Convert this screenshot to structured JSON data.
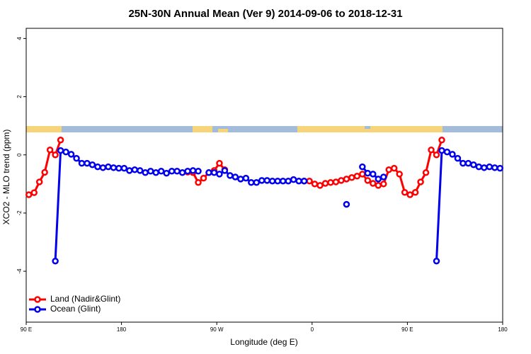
{
  "chart_data": {
    "type": "line",
    "title": "25N-30N Annual Mean (Ver 9)   2014-09-06 to 2018-12-31",
    "x_label": "Longitude (deg E)",
    "y_label": "XCO2 - MLO trend (ppm)",
    "x": [
      92.5,
      97.5,
      102.5,
      107.5,
      112.5,
      117.5,
      122.5,
      127.5,
      132.5,
      137.5,
      142.5,
      147.5,
      152.5,
      157.5,
      162.5,
      167.5,
      172.5,
      177.5,
      182.5,
      187.5,
      192.5,
      197.5,
      202.5,
      207.5,
      212.5,
      217.5,
      222.5,
      227.5,
      232.5,
      237.5,
      242.5,
      247.5,
      252.5,
      257.5,
      262.5,
      267.5,
      272.5,
      277.5,
      282.5,
      287.5,
      292.5,
      297.5,
      302.5,
      307.5,
      312.5,
      317.5,
      322.5,
      327.5,
      332.5,
      337.5,
      342.5,
      347.5,
      352.5,
      357.5,
      362.5,
      367.5,
      372.5,
      377.5,
      382.5,
      387.5,
      392.5,
      397.5,
      402.5,
      407.5,
      412.5,
      417.5,
      422.5,
      427.5,
      432.5,
      437.5,
      442.5,
      447.5,
      452.5,
      457.5,
      462.5,
      467.5,
      472.5,
      477.5,
      482.5,
      487.5,
      492.5,
      497.5,
      502.5,
      507.5,
      512.5,
      517.5,
      522.5,
      527.5,
      532.5,
      537.5
    ],
    "series": [
      {
        "name": "Land (Nadir&Glint)",
        "color": "#ff0000",
        "values": [
          -1.37,
          -1.3,
          -0.93,
          -0.6,
          0.17,
          0,
          0.51,
          null,
          null,
          null,
          null,
          null,
          null,
          null,
          null,
          null,
          null,
          null,
          null,
          null,
          null,
          null,
          null,
          null,
          null,
          null,
          null,
          null,
          null,
          null,
          -0.59,
          -0.61,
          -0.95,
          -0.8,
          -0.61,
          -0.54,
          -0.29,
          -0.51,
          null,
          null,
          null,
          null,
          null,
          null,
          null,
          null,
          null,
          null,
          null,
          null,
          null,
          null,
          -0.9,
          -0.9,
          -1.0,
          -1.05,
          -0.98,
          -0.95,
          -0.93,
          -0.88,
          -0.83,
          -0.78,
          -0.73,
          -0.66,
          -0.88,
          -0.98,
          -1.05,
          -1.0,
          -0.51,
          -0.46,
          -0.66,
          -1.29,
          -1.37,
          -1.29,
          -0.93,
          -0.61,
          0.17,
          0,
          0.51,
          null,
          null,
          null,
          null,
          null,
          null,
          null,
          null,
          null,
          null,
          null
        ]
      },
      {
        "name": "Ocean (Glint)",
        "color": "#0000ee",
        "values": [
          null,
          null,
          null,
          null,
          null,
          -3.65,
          0.15,
          0.1,
          0.02,
          -0.12,
          -0.29,
          -0.29,
          -0.34,
          -0.41,
          -0.44,
          -0.41,
          -0.44,
          -0.46,
          -0.46,
          -0.54,
          -0.51,
          -0.54,
          -0.61,
          -0.56,
          -0.61,
          -0.56,
          -0.63,
          -0.56,
          -0.56,
          -0.61,
          -0.56,
          -0.54,
          -0.56,
          null,
          -0.61,
          -0.61,
          -0.66,
          -0.54,
          -0.71,
          -0.76,
          -0.83,
          -0.8,
          -0.95,
          -0.95,
          -0.88,
          -0.88,
          -0.9,
          -0.9,
          -0.9,
          -0.9,
          -0.85,
          -0.9,
          -0.9,
          null,
          null,
          null,
          null,
          null,
          null,
          null,
          -1.7,
          null,
          null,
          -0.41,
          -0.63,
          -0.66,
          -0.83,
          -0.76,
          null,
          null,
          null,
          null,
          null,
          null,
          null,
          null,
          null,
          -3.65,
          0.15,
          0.1,
          0.02,
          -0.12,
          -0.29,
          -0.29,
          -0.34,
          -0.41,
          -0.44,
          -0.41,
          -0.44,
          -0.46
        ]
      }
    ],
    "xlim": [
      90,
      540
    ],
    "xticks": [
      {
        "value": 90,
        "label": "90 E"
      },
      180,
      {
        "value": 270,
        "label": "90 W"
      },
      {
        "value": 360,
        "label": "0"
      },
      {
        "value": 450,
        "label": "90 E"
      },
      {
        "value": 540,
        "label": "180"
      }
    ],
    "ylim": [
      -5.75,
      4.35
    ],
    "yticks": [
      -4,
      -2,
      0,
      2,
      4
    ],
    "legend": "bottom-left"
  }
}
